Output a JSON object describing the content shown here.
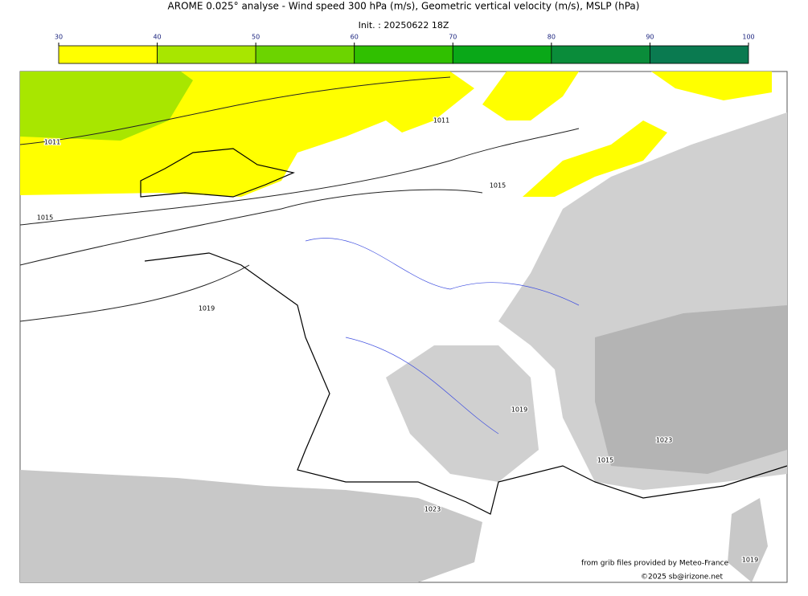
{
  "title": "AROME 0.025° analyse - Wind speed 300 hPa (m/s), Geometric vertical velocity (m/s), MSLP (hPa)",
  "subtitle": "Init. : 20250622 18Z",
  "colorbar": {
    "ticks": [
      30,
      40,
      50,
      60,
      70,
      80,
      90,
      100
    ],
    "colors": [
      "#ffff00",
      "#a8e600",
      "#6cd400",
      "#30c000",
      "#0aa818",
      "#0a8c3a",
      "#0a7a50"
    ]
  },
  "isobar_labels": [
    "1011",
    "1011",
    "1015",
    "1015",
    "1019",
    "1019",
    "1023",
    "1023",
    "1015",
    "1019"
  ],
  "credits": [
    "from grib files provided by Meteo-France",
    "©2025 sb@irizone.net"
  ]
}
